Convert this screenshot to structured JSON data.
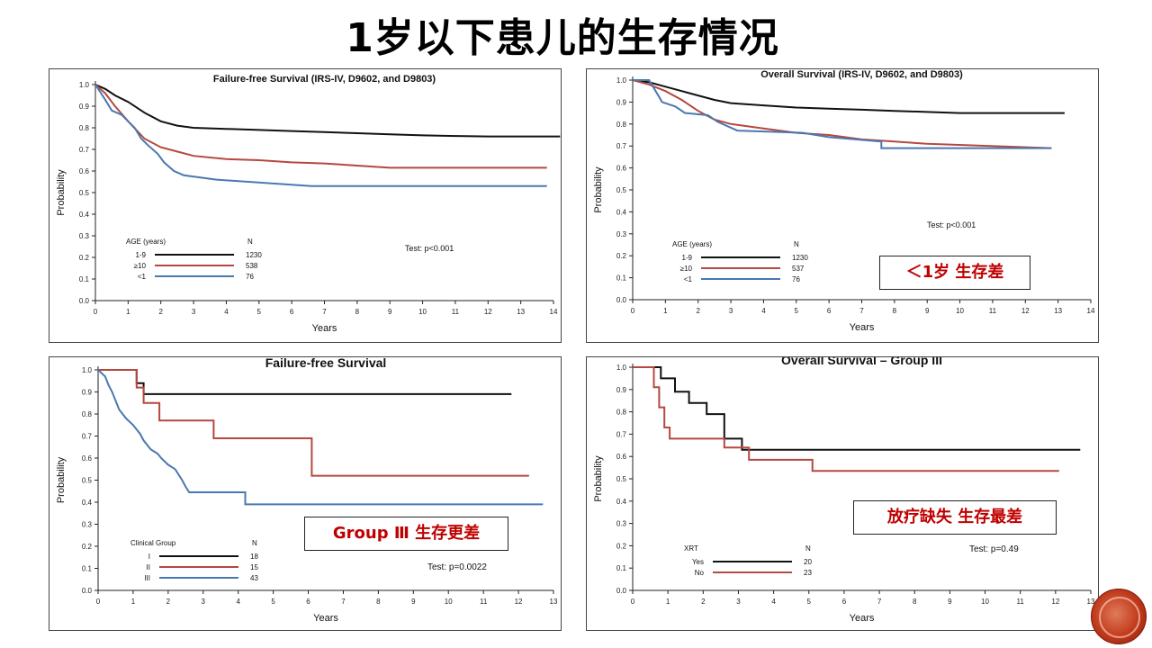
{
  "page": {
    "title": "1岁以下患儿的生存情况"
  },
  "callouts": {
    "c1": "＜1岁  生存差",
    "c2": "Group Ⅲ  生存更差",
    "c3": "放疗缺失  生存最差"
  },
  "colors": {
    "black": "#111111",
    "red": "#b5483f",
    "blue": "#4a78b0"
  },
  "chart_data": [
    {
      "type": "line",
      "title": "Failure-free Survival (IRS-IV, D9602, and D9803)",
      "xlabel": "Years",
      "ylabel": "Probability",
      "xlim": [
        0,
        14
      ],
      "ylim": [
        0,
        1
      ],
      "xticks": [
        "0",
        "1",
        "2",
        "3",
        "4",
        "5",
        "6",
        "7",
        "8",
        "9",
        "10",
        "11",
        "12",
        "13",
        "14"
      ],
      "yticks": [
        "0.0",
        "0.1",
        "0.2",
        "0.3",
        "0.4",
        "0.5",
        "0.6",
        "0.7",
        "0.8",
        "0.9",
        "1.0"
      ],
      "test": "Test: p<0.001",
      "legend": {
        "title": "AGE (years)",
        "n_header": "N",
        "entries": [
          {
            "label": "1-9",
            "n": "1230",
            "color": "#111111"
          },
          {
            "label": "≥10",
            "n": "538",
            "color": "#b5483f"
          },
          {
            "label": "<1",
            "n": "76",
            "color": "#4a78b0"
          }
        ]
      },
      "series": [
        {
          "name": "1-9",
          "color": "#111111",
          "points": [
            [
              0,
              1
            ],
            [
              0.3,
              0.98
            ],
            [
              0.6,
              0.95
            ],
            [
              1,
              0.92
            ],
            [
              1.5,
              0.87
            ],
            [
              2,
              0.83
            ],
            [
              2.5,
              0.81
            ],
            [
              3,
              0.8
            ],
            [
              4,
              0.795
            ],
            [
              5,
              0.79
            ],
            [
              6,
              0.785
            ],
            [
              7,
              0.78
            ],
            [
              8,
              0.775
            ],
            [
              9,
              0.77
            ],
            [
              10,
              0.765
            ],
            [
              11,
              0.762
            ],
            [
              12,
              0.76
            ],
            [
              13,
              0.76
            ],
            [
              14.2,
              0.76
            ]
          ]
        },
        {
          "name": "≥10",
          "color": "#b5483f",
          "points": [
            [
              0,
              1
            ],
            [
              0.3,
              0.96
            ],
            [
              0.6,
              0.9
            ],
            [
              1,
              0.83
            ],
            [
              1.5,
              0.75
            ],
            [
              2,
              0.71
            ],
            [
              2.5,
              0.69
            ],
            [
              3,
              0.67
            ],
            [
              4,
              0.655
            ],
            [
              5,
              0.65
            ],
            [
              6,
              0.64
            ],
            [
              7,
              0.635
            ],
            [
              8,
              0.625
            ],
            [
              9,
              0.615
            ],
            [
              10,
              0.615
            ],
            [
              11,
              0.615
            ],
            [
              12,
              0.615
            ],
            [
              13.8,
              0.615
            ]
          ]
        },
        {
          "name": "<1",
          "color": "#4a78b0",
          "points": [
            [
              0,
              1
            ],
            [
              0.3,
              0.93
            ],
            [
              0.5,
              0.88
            ],
            [
              0.8,
              0.86
            ],
            [
              1.2,
              0.8
            ],
            [
              1.4,
              0.75
            ],
            [
              1.6,
              0.72
            ],
            [
              1.9,
              0.68
            ],
            [
              2.1,
              0.64
            ],
            [
              2.4,
              0.6
            ],
            [
              2.7,
              0.58
            ],
            [
              3.7,
              0.56
            ],
            [
              6.6,
              0.53
            ],
            [
              13.8,
              0.53
            ]
          ]
        }
      ]
    },
    {
      "type": "line",
      "title": "Overall Survival (IRS-IV, D9602, and D9803)",
      "xlabel": "Years",
      "ylabel": "Probability",
      "xlim": [
        0,
        14
      ],
      "ylim": [
        0,
        1
      ],
      "xticks": [
        "0",
        "1",
        "2",
        "3",
        "4",
        "5",
        "6",
        "7",
        "8",
        "9",
        "10",
        "11",
        "12",
        "13",
        "14"
      ],
      "yticks": [
        "0.0",
        "0.1",
        "0.2",
        "0.3",
        "0.4",
        "0.5",
        "0.6",
        "0.7",
        "0.8",
        "0.9",
        "1.0"
      ],
      "test": "Test: p<0.001",
      "legend": {
        "title": "AGE (years)",
        "n_header": "N",
        "entries": [
          {
            "label": "1-9",
            "n": "1230",
            "color": "#111111"
          },
          {
            "label": "≥10",
            "n": "537",
            "color": "#b5483f"
          },
          {
            "label": "<1",
            "n": "76",
            "color": "#4a78b0"
          }
        ]
      },
      "series": [
        {
          "name": "1-9",
          "color": "#111111",
          "points": [
            [
              0,
              1
            ],
            [
              0.5,
              0.99
            ],
            [
              1,
              0.97
            ],
            [
              1.5,
              0.95
            ],
            [
              2,
              0.93
            ],
            [
              2.5,
              0.91
            ],
            [
              3,
              0.895
            ],
            [
              4,
              0.885
            ],
            [
              5,
              0.875
            ],
            [
              6,
              0.87
            ],
            [
              7,
              0.865
            ],
            [
              8,
              0.86
            ],
            [
              9,
              0.855
            ],
            [
              10,
              0.85
            ],
            [
              11,
              0.85
            ],
            [
              12,
              0.85
            ],
            [
              13.2,
              0.85
            ]
          ]
        },
        {
          "name": "≥10",
          "color": "#b5483f",
          "points": [
            [
              0,
              1
            ],
            [
              0.5,
              0.98
            ],
            [
              1,
              0.95
            ],
            [
              1.5,
              0.91
            ],
            [
              2,
              0.86
            ],
            [
              2.5,
              0.82
            ],
            [
              3,
              0.8
            ],
            [
              4,
              0.78
            ],
            [
              5,
              0.76
            ],
            [
              6,
              0.75
            ],
            [
              7,
              0.73
            ],
            [
              8,
              0.72
            ],
            [
              9,
              0.71
            ],
            [
              12.8,
              0.69
            ]
          ]
        },
        {
          "name": "<1",
          "color": "#4a78b0",
          "points": [
            [
              0,
              1
            ],
            [
              0.5,
              1
            ],
            [
              0.7,
              0.95
            ],
            [
              0.9,
              0.9
            ],
            [
              1.3,
              0.88
            ],
            [
              1.6,
              0.85
            ],
            [
              2.3,
              0.84
            ],
            [
              2.6,
              0.81
            ],
            [
              3.2,
              0.77
            ],
            [
              5.2,
              0.76
            ],
            [
              6,
              0.74
            ],
            [
              7.6,
              0.72
            ],
            [
              7.6,
              0.69
            ],
            [
              12.8,
              0.69
            ]
          ]
        }
      ]
    },
    {
      "type": "line",
      "title": "Failure-free Survival",
      "xlabel": "Years",
      "ylabel": "Probability",
      "xlim": [
        0,
        13
      ],
      "ylim": [
        0,
        1
      ],
      "xticks": [
        "0",
        "1",
        "2",
        "3",
        "4",
        "5",
        "6",
        "7",
        "8",
        "9",
        "10",
        "11",
        "12",
        "13"
      ],
      "yticks": [
        "0.0",
        "0.1",
        "0.2",
        "0.3",
        "0.4",
        "0.5",
        "0.6",
        "0.7",
        "0.8",
        "0.9",
        "1.0"
      ],
      "test": "Test: p=0.0022",
      "legend": {
        "title": "Clinical Group",
        "n_header": "N",
        "entries": [
          {
            "label": "I",
            "n": "18",
            "color": "#111111"
          },
          {
            "label": "II",
            "n": "15",
            "color": "#b5483f"
          },
          {
            "label": "III",
            "n": "43",
            "color": "#4a78b0"
          }
        ]
      },
      "series": [
        {
          "name": "I",
          "color": "#111111",
          "points": [
            [
              0,
              1
            ],
            [
              1.1,
              1
            ],
            [
              1.1,
              0.94
            ],
            [
              1.3,
              0.94
            ],
            [
              1.3,
              0.89
            ],
            [
              11.8,
              0.89
            ]
          ]
        },
        {
          "name": "II",
          "color": "#b5483f",
          "points": [
            [
              0,
              1
            ],
            [
              1.1,
              1
            ],
            [
              1.1,
              0.92
            ],
            [
              1.3,
              0.92
            ],
            [
              1.3,
              0.85
            ],
            [
              1.75,
              0.85
            ],
            [
              1.75,
              0.77
            ],
            [
              3.3,
              0.77
            ],
            [
              3.3,
              0.69
            ],
            [
              6.1,
              0.69
            ],
            [
              6.1,
              0.52
            ],
            [
              12.3,
              0.52
            ]
          ]
        },
        {
          "name": "III",
          "color": "#4a78b0",
          "points": [
            [
              0,
              1
            ],
            [
              0.2,
              0.97
            ],
            [
              0.3,
              0.93
            ],
            [
              0.4,
              0.9
            ],
            [
              0.5,
              0.86
            ],
            [
              0.6,
              0.82
            ],
            [
              0.8,
              0.78
            ],
            [
              1,
              0.75
            ],
            [
              1.2,
              0.71
            ],
            [
              1.3,
              0.68
            ],
            [
              1.5,
              0.64
            ],
            [
              1.7,
              0.62
            ],
            [
              1.8,
              0.6
            ],
            [
              2,
              0.57
            ],
            [
              2.2,
              0.55
            ],
            [
              2.4,
              0.5
            ],
            [
              2.5,
              0.47
            ],
            [
              2.6,
              0.445
            ],
            [
              4.2,
              0.445
            ],
            [
              4.2,
              0.39
            ],
            [
              12.7,
              0.39
            ]
          ]
        }
      ]
    },
    {
      "type": "line",
      "title": "Overall Survival – Group III",
      "xlabel": "Years",
      "ylabel": "Probability",
      "xlim": [
        0,
        13
      ],
      "ylim": [
        0,
        1
      ],
      "xticks": [
        "0",
        "1",
        "2",
        "3",
        "4",
        "5",
        "6",
        "7",
        "8",
        "9",
        "10",
        "11",
        "12",
        "13"
      ],
      "yticks": [
        "0.0",
        "0.1",
        "0.2",
        "0.3",
        "0.4",
        "0.5",
        "0.6",
        "0.7",
        "0.8",
        "0.9",
        "1.0"
      ],
      "test": "Test: p=0.49",
      "legend": {
        "title": "XRT",
        "n_header": "N",
        "entries": [
          {
            "label": "Yes",
            "n": "20",
            "color": "#111111"
          },
          {
            "label": "No",
            "n": "23",
            "color": "#b5483f"
          }
        ]
      },
      "series": [
        {
          "name": "Yes",
          "color": "#111111",
          "points": [
            [
              0,
              1
            ],
            [
              0.8,
              1
            ],
            [
              0.8,
              0.95
            ],
            [
              1.2,
              0.95
            ],
            [
              1.2,
              0.89
            ],
            [
              1.6,
              0.89
            ],
            [
              1.6,
              0.84
            ],
            [
              2.1,
              0.84
            ],
            [
              2.1,
              0.79
            ],
            [
              2.6,
              0.79
            ],
            [
              2.6,
              0.68
            ],
            [
              3.1,
              0.68
            ],
            [
              3.1,
              0.63
            ],
            [
              12.7,
              0.63
            ]
          ]
        },
        {
          "name": "No",
          "color": "#b5483f",
          "points": [
            [
              0,
              1
            ],
            [
              0.6,
              1
            ],
            [
              0.6,
              0.91
            ],
            [
              0.75,
              0.91
            ],
            [
              0.75,
              0.82
            ],
            [
              0.9,
              0.82
            ],
            [
              0.9,
              0.73
            ],
            [
              1.05,
              0.73
            ],
            [
              1.05,
              0.68
            ],
            [
              2.6,
              0.68
            ],
            [
              2.6,
              0.64
            ],
            [
              3.3,
              0.64
            ],
            [
              3.3,
              0.585
            ],
            [
              5.1,
              0.585
            ],
            [
              5.1,
              0.535
            ],
            [
              12.1,
              0.535
            ]
          ]
        }
      ]
    }
  ]
}
